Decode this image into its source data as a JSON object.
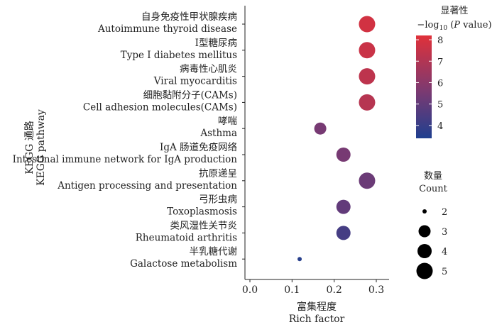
{
  "chart_data": {
    "type": "scatter",
    "title": "",
    "xlabel_cn": "富集程度",
    "xlabel_en": "Rich factor",
    "ylabel_cn": "KEGG 通路",
    "ylabel_en": "KEGG pathway",
    "xlim": [
      -0.02,
      0.36
    ],
    "xticks": [
      "0.0",
      "0.1",
      "0.2",
      "0.3"
    ],
    "xtick_values": [
      0,
      0.1,
      0.2,
      0.3
    ],
    "grid": false,
    "categories": [
      {
        "cn": "自身免疫性甲状腺疾病",
        "en": "Autoimmune thyroid disease"
      },
      {
        "cn": "Ⅰ型糖尿病",
        "en": "Type Ⅰ diabetes mellitus"
      },
      {
        "cn": "病毒性心肌炎",
        "en": "Viral myocarditis"
      },
      {
        "cn": "细胞黏附分子(CAMs)",
        "en": "Cell adhesion molecules(CAMs)"
      },
      {
        "cn": "哮喘",
        "en": "Asthma"
      },
      {
        "cn": "IgA 肠道免疫网络",
        "en": "Intestinal immune network for IgA production"
      },
      {
        "cn": "抗原递呈",
        "en": "Antigen processing and presentation"
      },
      {
        "cn": "弓形虫病",
        "en": "Toxoplasmosis"
      },
      {
        "cn": "类风湿性关节炎",
        "en": "Rheumatoid arthritis"
      },
      {
        "cn": "半乳糖代谢",
        "en": "Galactose metabolism"
      }
    ],
    "points": [
      {
        "rich_factor": 0.278,
        "count": 5,
        "neg_log10_p": 7.8
      },
      {
        "rich_factor": 0.278,
        "count": 5,
        "neg_log10_p": 7.6
      },
      {
        "rich_factor": 0.278,
        "count": 5,
        "neg_log10_p": 7.3
      },
      {
        "rich_factor": 0.278,
        "count": 5,
        "neg_log10_p": 7.1
      },
      {
        "rich_factor": 0.167,
        "count": 3,
        "neg_log10_p": 5.5
      },
      {
        "rich_factor": 0.222,
        "count": 4,
        "neg_log10_p": 5.5
      },
      {
        "rich_factor": 0.278,
        "count": 5,
        "neg_log10_p": 5.2
      },
      {
        "rich_factor": 0.222,
        "count": 4,
        "neg_log10_p": 5.0
      },
      {
        "rich_factor": 0.222,
        "count": 4,
        "neg_log10_p": 4.3
      },
      {
        "rich_factor": 0.118,
        "count": 2,
        "neg_log10_p": 3.6
      }
    ],
    "color_legend": {
      "title_cn": "显著性",
      "title_prefix": "−log",
      "title_sub": "10",
      "title_var": "P",
      "title_suffix": " value)",
      "title_open": " (",
      "range": [
        3.4,
        8.2
      ],
      "ticks": [
        "4",
        "5",
        "6",
        "7",
        "8"
      ],
      "tick_values": [
        4,
        5,
        6,
        7,
        8
      ],
      "color_low": "#1f3f8f",
      "color_mid": "#7a3a72",
      "color_high": "#e0313a"
    },
    "size_legend": {
      "title_cn": "数量",
      "title_en": "Count",
      "values": [
        "2",
        "3",
        "4",
        "5"
      ]
    }
  }
}
